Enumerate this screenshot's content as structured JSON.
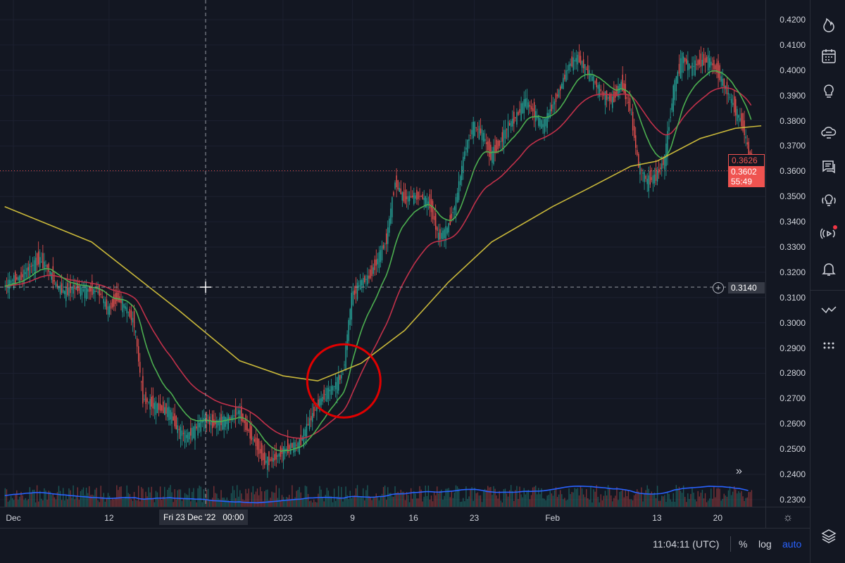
{
  "chart_data": {
    "type": "candlestick",
    "title": "",
    "yaxis": {
      "range": [
        0.225,
        0.425
      ],
      "ticks": [
        "0.4200",
        "0.4100",
        "0.4000",
        "0.3900",
        "0.3800",
        "0.3700",
        "0.3600",
        "0.3500",
        "0.3400",
        "0.3300",
        "0.3200",
        "0.3100",
        "0.3000",
        "0.2900",
        "0.2800",
        "0.2700",
        "0.2600",
        "0.2500",
        "0.2400",
        "0.2300"
      ]
    },
    "xaxis": {
      "start": "2022-11-30",
      "end": "2023-02-25",
      "ticks": [
        {
          "label": "Dec",
          "date": "2022-12-01"
        },
        {
          "label": "12",
          "date": "2022-12-12"
        },
        {
          "label": "2023",
          "date": "2023-01-01"
        },
        {
          "label": "9",
          "date": "2023-01-09"
        },
        {
          "label": "16",
          "date": "2023-01-16"
        },
        {
          "label": "23",
          "date": "2023-01-23"
        },
        {
          "label": "Feb",
          "date": "2023-02-01"
        },
        {
          "label": "13",
          "date": "2023-02-13"
        },
        {
          "label": "20",
          "date": "2023-02-20"
        }
      ]
    },
    "daily_close": [
      0.314,
      0.317,
      0.318,
      0.322,
      0.325,
      0.322,
      0.315,
      0.312,
      0.314,
      0.313,
      0.313,
      0.312,
      0.305,
      0.31,
      0.306,
      0.3,
      0.27,
      0.268,
      0.266,
      0.265,
      0.258,
      0.255,
      0.258,
      0.262,
      0.26,
      0.261,
      0.262,
      0.265,
      0.258,
      0.252,
      0.245,
      0.246,
      0.249,
      0.251,
      0.252,
      0.26,
      0.267,
      0.272,
      0.275,
      0.28,
      0.31,
      0.316,
      0.318,
      0.325,
      0.333,
      0.356,
      0.349,
      0.35,
      0.35,
      0.347,
      0.334,
      0.337,
      0.348,
      0.368,
      0.378,
      0.375,
      0.366,
      0.371,
      0.378,
      0.382,
      0.388,
      0.383,
      0.378,
      0.385,
      0.393,
      0.402,
      0.405,
      0.4,
      0.395,
      0.39,
      0.388,
      0.395,
      0.385,
      0.362,
      0.356,
      0.358,
      0.365,
      0.392,
      0.405,
      0.401,
      0.403,
      0.404,
      0.4,
      0.393,
      0.385,
      0.378,
      0.362
    ],
    "colors": {
      "up": "#26a69a",
      "down": "#ef5350",
      "ma_fast": "#4caf50",
      "ma_mid": "#c2314a",
      "ma_slow": "#c9b83a",
      "volume_ma": "#2962ff",
      "annotation": "#e00000"
    },
    "ma_slow": [
      {
        "date": "2022-11-30",
        "v": 0.346
      },
      {
        "date": "2022-12-10",
        "v": 0.332
      },
      {
        "date": "2022-12-20",
        "v": 0.305
      },
      {
        "date": "2022-12-27",
        "v": 0.285
      },
      {
        "date": "2023-01-01",
        "v": 0.279
      },
      {
        "date": "2023-01-05",
        "v": 0.277
      },
      {
        "date": "2023-01-10",
        "v": 0.284
      },
      {
        "date": "2023-01-15",
        "v": 0.297
      },
      {
        "date": "2023-01-20",
        "v": 0.316
      },
      {
        "date": "2023-01-25",
        "v": 0.332
      },
      {
        "date": "2023-02-01",
        "v": 0.346
      },
      {
        "date": "2023-02-05",
        "v": 0.353
      },
      {
        "date": "2023-02-10",
        "v": 0.362
      },
      {
        "date": "2023-02-13",
        "v": 0.364
      },
      {
        "date": "2023-02-18",
        "v": 0.373
      },
      {
        "date": "2023-02-22",
        "v": 0.377
      },
      {
        "date": "2023-02-25",
        "v": 0.378
      }
    ],
    "annotation": {
      "shape": "circle",
      "date": "2023-01-08",
      "price": 0.277
    }
  },
  "crosshair": {
    "date_label": "Fri 23 Dec '22",
    "time_label": "00:00",
    "price_label": "0.3140"
  },
  "price_tags": {
    "previous": "0.3626",
    "last": "0.3602",
    "countdown": "55:49"
  },
  "bottom": {
    "clock": "11:04:11 (UTC)",
    "percent": "%",
    "log": "log",
    "auto": "auto"
  },
  "toolbar": [
    "flame-icon",
    "calendar-icon",
    "idea-icon",
    "chat-cloud-icon",
    "chat-icon",
    "idea-stream-icon",
    "broadcast-icon",
    "bell-icon",
    "chart-patterns-icon",
    "dots-icon",
    "layers-icon"
  ]
}
